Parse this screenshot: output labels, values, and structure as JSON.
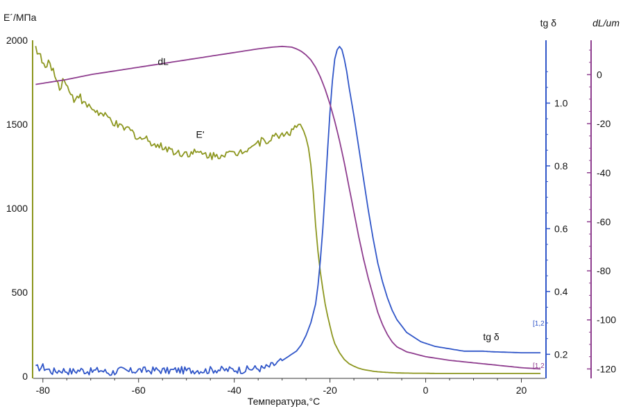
{
  "chart_data": {
    "type": "line",
    "title": "",
    "xlabel": "Температура,°C",
    "xlim": [
      -82,
      25
    ],
    "x_ticks": [
      -80,
      -60,
      -40,
      -20,
      0,
      20
    ],
    "axes": {
      "left": {
        "label": "E´/МПа",
        "lim": [
          0,
          2000
        ],
        "ticks": [
          0,
          500,
          1000,
          1500,
          2000
        ],
        "color": "#8c961e"
      },
      "right1": {
        "label": "tg δ",
        "lim": [
          0.13,
          1.2
        ],
        "ticks": [
          0.2,
          0.4,
          0.6,
          0.8,
          1.0
        ],
        "color": "#2f55c8"
      },
      "right2": {
        "label": "dL/um",
        "lim": [
          -123,
          14
        ],
        "ticks": [
          0,
          -20,
          -40,
          -60,
          -80,
          -100,
          -120
        ],
        "color": "#8e3c8e"
      }
    },
    "series": [
      {
        "name": "E'",
        "axis": "left",
        "color": "#8c961e",
        "label_at": [
          -48,
          1420
        ],
        "x": [
          -81.5,
          -80.5,
          -79.5,
          -78.5,
          -77.5,
          -76.5,
          -75.5,
          -74.5,
          -73.5,
          -72.5,
          -71.5,
          -70,
          -68,
          -66,
          -64,
          -62,
          -60,
          -58,
          -56,
          -54,
          -52,
          -50,
          -48,
          -46,
          -44,
          -42,
          -40,
          -38,
          -36,
          -34,
          -32,
          -30,
          -28,
          -27,
          -26.2,
          -25.5,
          -25,
          -24.5,
          -24,
          -23.5,
          -23,
          -22.5,
          -22,
          -21.5,
          -21,
          -20.5,
          -20,
          -19.5,
          -19,
          -18,
          -17,
          -16,
          -15,
          -14,
          -13,
          -12,
          -11,
          -10,
          -8,
          -6,
          -4,
          -2,
          0,
          2,
          4,
          6,
          8,
          10,
          12,
          14,
          16,
          18,
          20,
          22,
          24
        ],
        "y": [
          1960,
          1900,
          1830,
          1870,
          1790,
          1720,
          1780,
          1690,
          1650,
          1680,
          1620,
          1600,
          1560,
          1530,
          1480,
          1470,
          1420,
          1410,
          1370,
          1360,
          1330,
          1330,
          1330,
          1320,
          1310,
          1330,
          1320,
          1350,
          1380,
          1400,
          1420,
          1440,
          1460,
          1480,
          1500,
          1460,
          1420,
          1360,
          1260,
          1100,
          900,
          740,
          620,
          520,
          430,
          360,
          300,
          240,
          195,
          140,
          100,
          75,
          60,
          48,
          40,
          35,
          30,
          27,
          23,
          20,
          19,
          18,
          18,
          17,
          17,
          17,
          17,
          17,
          17,
          17,
          17,
          17,
          17,
          17,
          17
        ]
      },
      {
        "name": "tg δ",
        "axis": "right1",
        "color": "#2f55c8",
        "label_at": [
          12,
          0.245
        ],
        "x": [
          -81.5,
          -80,
          -78,
          -76,
          -74,
          -72,
          -70,
          -68,
          -66,
          -64,
          -62,
          -60,
          -58,
          -56,
          -54,
          -52,
          -50,
          -48,
          -46,
          -44,
          -42,
          -40,
          -38,
          -36,
          -34,
          -32,
          -30,
          -29,
          -28,
          -27,
          -26,
          -25,
          -24,
          -23,
          -22.5,
          -22,
          -21.5,
          -21,
          -20.5,
          -20,
          -19.5,
          -19,
          -18.5,
          -18,
          -17.5,
          -17,
          -16.5,
          -16,
          -15,
          -14,
          -13,
          -12,
          -11,
          -10,
          -9,
          -8,
          -7,
          -6,
          -5,
          -4,
          -3,
          -2,
          -1,
          0,
          2,
          4,
          6,
          8,
          10,
          12,
          14,
          16,
          18,
          20,
          22,
          24
        ],
        "y": [
          0.155,
          0.16,
          0.145,
          0.15,
          0.145,
          0.15,
          0.145,
          0.15,
          0.14,
          0.15,
          0.145,
          0.15,
          0.148,
          0.15,
          0.147,
          0.15,
          0.148,
          0.15,
          0.148,
          0.152,
          0.15,
          0.152,
          0.15,
          0.155,
          0.155,
          0.165,
          0.18,
          0.19,
          0.2,
          0.21,
          0.23,
          0.26,
          0.3,
          0.36,
          0.42,
          0.5,
          0.6,
          0.72,
          0.85,
          0.97,
          1.07,
          1.14,
          1.17,
          1.18,
          1.17,
          1.14,
          1.1,
          1.05,
          0.96,
          0.86,
          0.76,
          0.66,
          0.57,
          0.49,
          0.43,
          0.38,
          0.34,
          0.31,
          0.29,
          0.27,
          0.26,
          0.25,
          0.24,
          0.235,
          0.225,
          0.22,
          0.215,
          0.21,
          0.21,
          0.21,
          0.208,
          0.207,
          0.206,
          0.205,
          0.205,
          0.205
        ]
      },
      {
        "name": "dL",
        "axis": "right2",
        "color": "#8e3c8e",
        "label_at": [
          -56,
          4
        ],
        "x": [
          -81.5,
          -75,
          -70,
          -65,
          -60,
          -55,
          -50,
          -45,
          -40,
          -35,
          -32,
          -30,
          -28,
          -27,
          -26,
          -25,
          -24,
          -23,
          -22,
          -21,
          -20,
          -19,
          -18,
          -17,
          -16,
          -15,
          -14,
          -13,
          -12,
          -11,
          -10,
          -9,
          -8,
          -7,
          -6,
          -4,
          -2,
          0,
          5,
          10,
          15,
          20,
          24
        ],
        "y": [
          -4,
          -2,
          0,
          1.5,
          3,
          4.5,
          6,
          7.5,
          9,
          10.5,
          11.2,
          11.5,
          11.2,
          10.5,
          9.5,
          8,
          6,
          3,
          -1,
          -6,
          -12,
          -19,
          -27,
          -36,
          -46,
          -56,
          -66,
          -75,
          -83,
          -90,
          -97,
          -102,
          -106,
          -109,
          -111,
          -113,
          -114,
          -115,
          -116.5,
          -117.5,
          -118.5,
          -119.5,
          -120
        ]
      }
    ]
  }
}
